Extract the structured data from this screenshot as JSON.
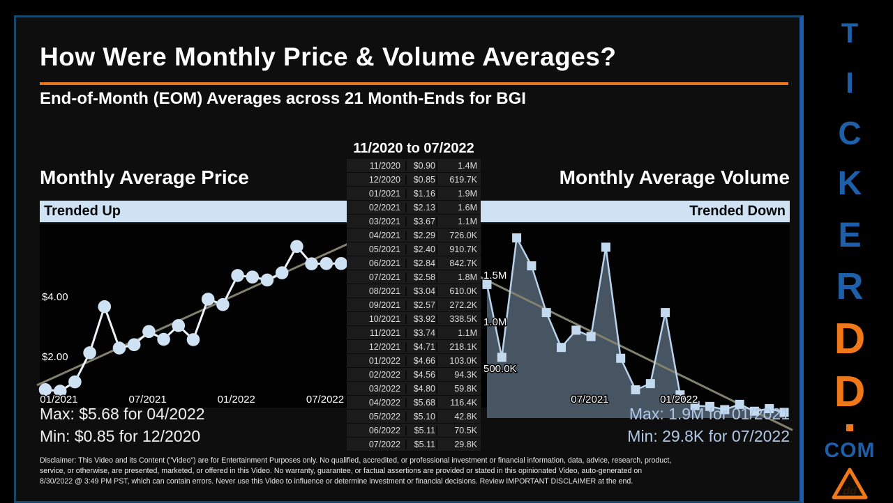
{
  "header": {
    "title": "How Were Monthly Price & Volume Averages?",
    "subtitle": "End-of-Month (EOM) Averages across 21 Month-Ends for BGI"
  },
  "table": {
    "title": "11/2020 to 07/2022",
    "rows": [
      [
        "11/2020",
        "$0.90",
        "1.4M"
      ],
      [
        "12/2020",
        "$0.85",
        "619.7K"
      ],
      [
        "01/2021",
        "$1.16",
        "1.9M"
      ],
      [
        "02/2021",
        "$2.13",
        "1.6M"
      ],
      [
        "03/2021",
        "$3.67",
        "1.1M"
      ],
      [
        "04/2021",
        "$2.29",
        "726.0K"
      ],
      [
        "05/2021",
        "$2.40",
        "910.7K"
      ],
      [
        "06/2021",
        "$2.84",
        "842.7K"
      ],
      [
        "07/2021",
        "$2.58",
        "1.8M"
      ],
      [
        "08/2021",
        "$3.04",
        "610.0K"
      ],
      [
        "09/2021",
        "$2.57",
        "272.2K"
      ],
      [
        "10/2021",
        "$3.92",
        "338.5K"
      ],
      [
        "11/2021",
        "$3.74",
        "1.1M"
      ],
      [
        "12/2021",
        "$4.71",
        "218.1K"
      ],
      [
        "01/2022",
        "$4.66",
        "103.0K"
      ],
      [
        "02/2022",
        "$4.56",
        "94.3K"
      ],
      [
        "03/2022",
        "$4.80",
        "59.8K"
      ],
      [
        "04/2022",
        "$5.68",
        "116.4K"
      ],
      [
        "05/2022",
        "$5.10",
        "42.8K"
      ],
      [
        "06/2022",
        "$5.11",
        "70.5K"
      ],
      [
        "07/2022",
        "$5.11",
        "29.8K"
      ]
    ]
  },
  "chart_data": [
    {
      "type": "line",
      "title": "Monthly Average Price",
      "banner": "Trended Up",
      "categories": [
        "11/2020",
        "12/2020",
        "01/2021",
        "02/2021",
        "03/2021",
        "04/2021",
        "05/2021",
        "06/2021",
        "07/2021",
        "08/2021",
        "09/2021",
        "10/2021",
        "11/2021",
        "12/2021",
        "01/2022",
        "02/2022",
        "03/2022",
        "04/2022",
        "05/2022",
        "06/2022",
        "07/2022"
      ],
      "values": [
        0.9,
        0.85,
        1.16,
        2.13,
        3.67,
        2.29,
        2.4,
        2.84,
        2.58,
        3.04,
        2.57,
        3.92,
        3.74,
        4.71,
        4.66,
        4.56,
        4.8,
        5.68,
        5.1,
        5.11,
        5.11
      ],
      "y_ticks": [
        {
          "label": "$4.00",
          "value": 4.0
        },
        {
          "label": "$2.00",
          "value": 2.0
        }
      ],
      "x_ticks": [
        {
          "label": "01/2021",
          "index": 2
        },
        {
          "label": "07/2021",
          "index": 8
        },
        {
          "label": "01/2022",
          "index": 14
        },
        {
          "label": "07/2022",
          "index": 20
        }
      ],
      "trendline": true,
      "grid": false,
      "max_note": "Max: $5.68 for 04/2022",
      "min_note": "Min: $0.85 for 12/2020"
    },
    {
      "type": "area",
      "title": "Monthly Average Volume",
      "banner": "Trended Down",
      "categories": [
        "11/2020",
        "12/2020",
        "01/2021",
        "02/2021",
        "03/2021",
        "04/2021",
        "05/2021",
        "06/2021",
        "07/2021",
        "08/2021",
        "09/2021",
        "10/2021",
        "11/2021",
        "12/2021",
        "01/2022",
        "02/2022",
        "03/2022",
        "04/2022",
        "05/2022",
        "06/2022",
        "07/2022"
      ],
      "values": [
        1400000,
        619700,
        1900000,
        1600000,
        1100000,
        726000,
        910700,
        842700,
        1800000,
        610000,
        272200,
        338500,
        1100000,
        218100,
        103000,
        94300,
        59800,
        116400,
        42800,
        70500,
        29800
      ],
      "y_ticks": [
        {
          "label": "1.5M",
          "value": 1500000
        },
        {
          "label": "1.0M",
          "value": 1000000
        },
        {
          "label": "500.0K",
          "value": 500000
        }
      ],
      "x_ticks": [
        {
          "label": "07/2021",
          "index": 8
        },
        {
          "label": "01/2022",
          "index": 14
        }
      ],
      "trendline": true,
      "grid": false,
      "max_note": "Max: 1.9M for 01/2021",
      "min_note": "Min: 29.8K for 07/2022"
    }
  ],
  "disclaimer": {
    "lines": [
      "Disclaimer: This Video and its Content (\"Video\") are for Entertainment Purposes only. No qualified, accredited, or professional investment or financial information, data, advice, research, product,",
      "service, or otherwise, are presented, marketed, or offered in this Video. No warranty, guarantee, or factual assertions are provided or stated in this opinionated Video, auto-generated on",
      "8/30/2022 @ 3:49 PM PST, which can contain errors. Never use this Video to influence or determine investment or financial decisions. Review IMPORTANT DISCLAIMER at the end."
    ]
  },
  "sidebar": {
    "letters": [
      {
        "ch": "T",
        "color": "#1d5fa8"
      },
      {
        "ch": "I",
        "color": "#1d5fa8"
      },
      {
        "ch": "C",
        "color": "#1d5fa8"
      },
      {
        "ch": "K",
        "color": "#1d5fa8"
      },
      {
        "ch": "E",
        "color": "#1d5fa8"
      },
      {
        "ch": "R",
        "color": "#1d5fa8"
      },
      {
        "ch": "D",
        "color": "#f07818"
      },
      {
        "ch": "D",
        "color": "#f07818"
      }
    ],
    "com_label": "COM",
    "logo": "warning-triangle-dd-icon"
  },
  "colors": {
    "accent_orange": "#e8761e",
    "banner_blue": "#cfe2f3",
    "brand_blue": "#1d5fa8",
    "brand_orange": "#f07818",
    "trend_gray": "#82806f",
    "price_line": "#edf4fb",
    "marker_blue": "#cfe2f3",
    "volume_line": "#bad3ec",
    "volume_marker": "#c3d9ee",
    "area_fill": "#4c5a68",
    "right_note_blue": "#b0c7e6"
  }
}
